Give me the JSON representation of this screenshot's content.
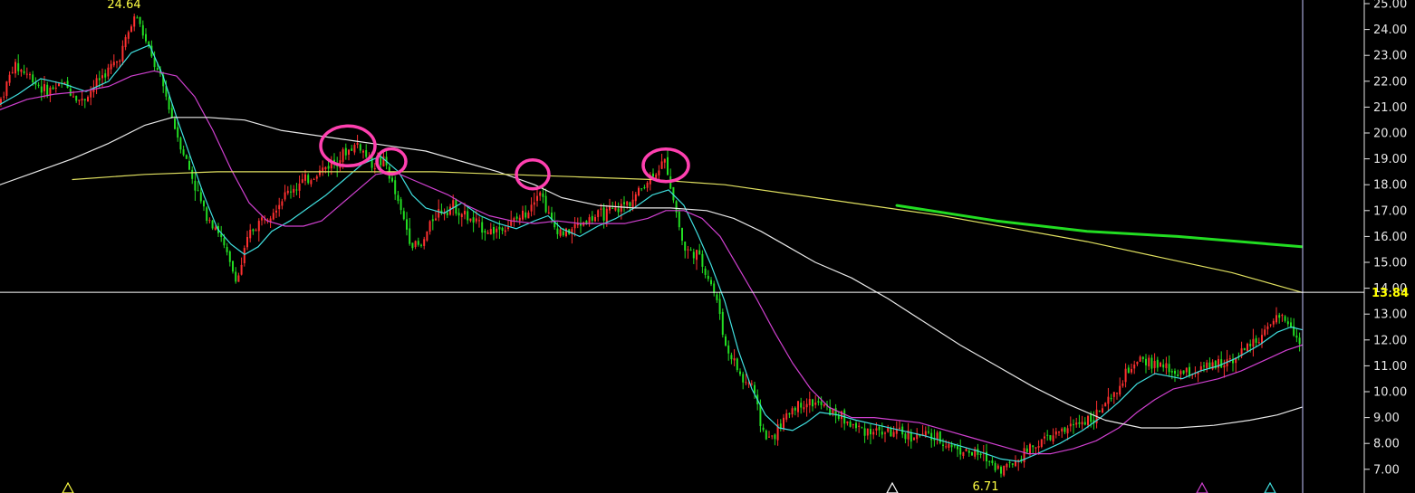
{
  "chart_data": {
    "type": "line",
    "title": "",
    "xlabel": "",
    "ylabel": "",
    "ylim": [
      6.6,
      25.15
    ],
    "y_ticks": [
      "25.00",
      "24.00",
      "23.00",
      "22.00",
      "21.00",
      "20.00",
      "19.00",
      "18.00",
      "17.00",
      "16.00",
      "15.00",
      "14.00",
      "13.00",
      "12.00",
      "11.00",
      "10.00",
      "9.00",
      "8.00",
      "7.00"
    ],
    "current_price": "13.84",
    "annotations": {
      "high_label": "24.64",
      "low_label": "6.71"
    },
    "candles_anchor_prices": [
      [
        0,
        21.2
      ],
      [
        15,
        22.6
      ],
      [
        30,
        22.3
      ],
      [
        50,
        21.6
      ],
      [
        70,
        21.9
      ],
      [
        90,
        21.2
      ],
      [
        110,
        22.1
      ],
      [
        130,
        22.8
      ],
      [
        150,
        24.6
      ],
      [
        165,
        23.1
      ],
      [
        180,
        21.8
      ],
      [
        195,
        20.0
      ],
      [
        210,
        18.5
      ],
      [
        225,
        17.0
      ],
      [
        240,
        16.3
      ],
      [
        255,
        14.8
      ],
      [
        262,
        14.3
      ],
      [
        275,
        16.1
      ],
      [
        290,
        16.7
      ],
      [
        305,
        17.2
      ],
      [
        320,
        17.8
      ],
      [
        340,
        18.2
      ],
      [
        360,
        18.7
      ],
      [
        380,
        19.2
      ],
      [
        395,
        19.6
      ],
      [
        410,
        18.8
      ],
      [
        425,
        18.9
      ],
      [
        440,
        17.2
      ],
      [
        455,
        15.7
      ],
      [
        465,
        15.6
      ],
      [
        480,
        16.9
      ],
      [
        500,
        17.2
      ],
      [
        520,
        16.6
      ],
      [
        540,
        16.2
      ],
      [
        560,
        16.4
      ],
      [
        580,
        16.9
      ],
      [
        595,
        17.9
      ],
      [
        610,
        16.4
      ],
      [
        625,
        16.1
      ],
      [
        640,
        16.5
      ],
      [
        660,
        16.8
      ],
      [
        680,
        17.0
      ],
      [
        700,
        17.5
      ],
      [
        720,
        18.4
      ],
      [
        735,
        18.9
      ],
      [
        745,
        17.2
      ],
      [
        755,
        15.5
      ],
      [
        770,
        15.3
      ],
      [
        785,
        14.2
      ],
      [
        795,
        13.0
      ],
      [
        800,
        11.8
      ],
      [
        810,
        11.2
      ],
      [
        820,
        10.4
      ],
      [
        830,
        10.3
      ],
      [
        840,
        8.7
      ],
      [
        848,
        8.1
      ],
      [
        860,
        8.6
      ],
      [
        875,
        9.4
      ],
      [
        890,
        9.6
      ],
      [
        905,
        9.5
      ],
      [
        925,
        9.1
      ],
      [
        945,
        8.6
      ],
      [
        965,
        8.5
      ],
      [
        985,
        8.4
      ],
      [
        1005,
        8.3
      ],
      [
        1025,
        8.3
      ],
      [
        1045,
        8.0
      ],
      [
        1065,
        7.7
      ],
      [
        1085,
        7.5
      ],
      [
        1105,
        7.0
      ],
      [
        1120,
        7.3
      ],
      [
        1135,
        7.8
      ],
      [
        1150,
        8.1
      ],
      [
        1170,
        8.4
      ],
      [
        1190,
        8.8
      ],
      [
        1210,
        9.1
      ],
      [
        1230,
        9.8
      ],
      [
        1245,
        10.8
      ],
      [
        1262,
        11.2
      ],
      [
        1280,
        11.0
      ],
      [
        1300,
        10.7
      ],
      [
        1320,
        10.8
      ],
      [
        1340,
        11.0
      ],
      [
        1360,
        11.3
      ],
      [
        1380,
        11.8
      ],
      [
        1400,
        12.4
      ],
      [
        1415,
        12.9
      ],
      [
        1425,
        12.6
      ],
      [
        1437,
        11.7
      ]
    ],
    "series": [
      {
        "color": "#40e0e0",
        "points": [
          [
            0,
            21.1
          ],
          [
            20,
            21.5
          ],
          [
            45,
            22.1
          ],
          [
            70,
            21.9
          ],
          [
            95,
            21.6
          ],
          [
            120,
            22.0
          ],
          [
            145,
            23.1
          ],
          [
            165,
            23.4
          ],
          [
            180,
            22.2
          ],
          [
            195,
            20.6
          ],
          [
            210,
            19.1
          ],
          [
            225,
            17.6
          ],
          [
            240,
            16.3
          ],
          [
            255,
            15.7
          ],
          [
            270,
            15.3
          ],
          [
            285,
            15.6
          ],
          [
            300,
            16.2
          ],
          [
            320,
            16.6
          ],
          [
            340,
            17.1
          ],
          [
            360,
            17.6
          ],
          [
            380,
            18.2
          ],
          [
            400,
            18.8
          ],
          [
            420,
            19.1
          ],
          [
            440,
            18.5
          ],
          [
            455,
            17.6
          ],
          [
            470,
            17.1
          ],
          [
            490,
            16.9
          ],
          [
            510,
            17.3
          ],
          [
            530,
            16.8
          ],
          [
            550,
            16.5
          ],
          [
            570,
            16.3
          ],
          [
            590,
            16.6
          ],
          [
            605,
            16.8
          ],
          [
            620,
            16.3
          ],
          [
            640,
            16.0
          ],
          [
            660,
            16.4
          ],
          [
            680,
            16.7
          ],
          [
            700,
            17.1
          ],
          [
            720,
            17.6
          ],
          [
            738,
            17.8
          ],
          [
            755,
            17.2
          ],
          [
            770,
            16.1
          ],
          [
            785,
            14.9
          ],
          [
            800,
            13.5
          ],
          [
            815,
            11.6
          ],
          [
            830,
            10.1
          ],
          [
            845,
            9.1
          ],
          [
            860,
            8.6
          ],
          [
            875,
            8.5
          ],
          [
            890,
            8.8
          ],
          [
            905,
            9.2
          ],
          [
            925,
            9.1
          ],
          [
            945,
            8.9
          ],
          [
            970,
            8.7
          ],
          [
            995,
            8.5
          ],
          [
            1020,
            8.3
          ],
          [
            1050,
            8.0
          ],
          [
            1080,
            7.7
          ],
          [
            1105,
            7.4
          ],
          [
            1125,
            7.3
          ],
          [
            1145,
            7.6
          ],
          [
            1170,
            8.0
          ],
          [
            1195,
            8.5
          ],
          [
            1215,
            9.0
          ],
          [
            1235,
            9.6
          ],
          [
            1255,
            10.3
          ],
          [
            1275,
            10.7
          ],
          [
            1290,
            10.6
          ],
          [
            1305,
            10.5
          ],
          [
            1325,
            10.8
          ],
          [
            1345,
            11.0
          ],
          [
            1365,
            11.3
          ],
          [
            1390,
            11.8
          ],
          [
            1410,
            12.3
          ],
          [
            1425,
            12.5
          ],
          [
            1437,
            12.4
          ]
        ]
      },
      {
        "color": "#d040d0",
        "points": [
          [
            0,
            20.9
          ],
          [
            30,
            21.3
          ],
          [
            60,
            21.5
          ],
          [
            90,
            21.6
          ],
          [
            120,
            21.8
          ],
          [
            145,
            22.2
          ],
          [
            170,
            22.4
          ],
          [
            195,
            22.2
          ],
          [
            215,
            21.4
          ],
          [
            235,
            20.1
          ],
          [
            255,
            18.6
          ],
          [
            275,
            17.3
          ],
          [
            295,
            16.6
          ],
          [
            315,
            16.4
          ],
          [
            335,
            16.4
          ],
          [
            355,
            16.6
          ],
          [
            375,
            17.2
          ],
          [
            395,
            17.8
          ],
          [
            415,
            18.4
          ],
          [
            435,
            18.5
          ],
          [
            455,
            18.2
          ],
          [
            475,
            17.9
          ],
          [
            495,
            17.6
          ],
          [
            515,
            17.2
          ],
          [
            540,
            16.8
          ],
          [
            565,
            16.6
          ],
          [
            590,
            16.5
          ],
          [
            615,
            16.6
          ],
          [
            640,
            16.5
          ],
          [
            665,
            16.5
          ],
          [
            690,
            16.5
          ],
          [
            715,
            16.7
          ],
          [
            735,
            17.0
          ],
          [
            755,
            17.0
          ],
          [
            775,
            16.7
          ],
          [
            795,
            16.0
          ],
          [
            815,
            14.8
          ],
          [
            835,
            13.6
          ],
          [
            855,
            12.3
          ],
          [
            875,
            11.1
          ],
          [
            895,
            10.1
          ],
          [
            915,
            9.4
          ],
          [
            940,
            9.0
          ],
          [
            965,
            9.0
          ],
          [
            990,
            8.9
          ],
          [
            1015,
            8.8
          ],
          [
            1045,
            8.5
          ],
          [
            1075,
            8.2
          ],
          [
            1105,
            7.9
          ],
          [
            1135,
            7.6
          ],
          [
            1160,
            7.6
          ],
          [
            1185,
            7.8
          ],
          [
            1210,
            8.1
          ],
          [
            1235,
            8.6
          ],
          [
            1255,
            9.2
          ],
          [
            1275,
            9.7
          ],
          [
            1295,
            10.1
          ],
          [
            1320,
            10.3
          ],
          [
            1345,
            10.5
          ],
          [
            1370,
            10.8
          ],
          [
            1395,
            11.2
          ],
          [
            1420,
            11.6
          ],
          [
            1437,
            11.8
          ]
        ]
      },
      {
        "color": "#e8e8e8",
        "points": [
          [
            0,
            18.0
          ],
          [
            40,
            18.5
          ],
          [
            80,
            19.0
          ],
          [
            120,
            19.6
          ],
          [
            160,
            20.3
          ],
          [
            190,
            20.6
          ],
          [
            230,
            20.6
          ],
          [
            270,
            20.5
          ],
          [
            310,
            20.1
          ],
          [
            350,
            19.9
          ],
          [
            390,
            19.7
          ],
          [
            430,
            19.5
          ],
          [
            470,
            19.3
          ],
          [
            510,
            18.9
          ],
          [
            550,
            18.5
          ],
          [
            590,
            18.0
          ],
          [
            620,
            17.5
          ],
          [
            660,
            17.2
          ],
          [
            700,
            17.1
          ],
          [
            740,
            17.1
          ],
          [
            780,
            17.0
          ],
          [
            810,
            16.7
          ],
          [
            840,
            16.2
          ],
          [
            870,
            15.6
          ],
          [
            900,
            15.0
          ],
          [
            940,
            14.4
          ],
          [
            980,
            13.6
          ],
          [
            1020,
            12.7
          ],
          [
            1060,
            11.8
          ],
          [
            1100,
            11.0
          ],
          [
            1140,
            10.2
          ],
          [
            1180,
            9.5
          ],
          [
            1220,
            8.9
          ],
          [
            1260,
            8.6
          ],
          [
            1300,
            8.6
          ],
          [
            1340,
            8.7
          ],
          [
            1380,
            8.9
          ],
          [
            1410,
            9.1
          ],
          [
            1437,
            9.4
          ]
        ]
      },
      {
        "color": "#e0e060",
        "points": [
          [
            80,
            18.2
          ],
          [
            160,
            18.4
          ],
          [
            240,
            18.5
          ],
          [
            320,
            18.5
          ],
          [
            400,
            18.5
          ],
          [
            480,
            18.5
          ],
          [
            560,
            18.4
          ],
          [
            640,
            18.3
          ],
          [
            720,
            18.2
          ],
          [
            800,
            18.0
          ],
          [
            880,
            17.6
          ],
          [
            960,
            17.2
          ],
          [
            1040,
            16.8
          ],
          [
            1120,
            16.3
          ],
          [
            1200,
            15.8
          ],
          [
            1280,
            15.2
          ],
          [
            1360,
            14.6
          ],
          [
            1437,
            13.84
          ]
        ]
      },
      {
        "color": "#22dd22",
        "points": [
          [
            990,
            17.2
          ],
          [
            1100,
            16.6
          ],
          [
            1200,
            16.2
          ],
          [
            1300,
            16.0
          ],
          [
            1437,
            15.6
          ]
        ]
      }
    ],
    "highlight_circles": [
      {
        "x": 384,
        "y": 19.5,
        "rx": 30,
        "ry": 22
      },
      {
        "x": 432,
        "y": 18.9,
        "rx": 16,
        "ry": 14
      },
      {
        "x": 588,
        "y": 18.4,
        "rx": 18,
        "ry": 16
      },
      {
        "x": 735,
        "y": 18.75,
        "rx": 25,
        "ry": 18
      }
    ],
    "markers": [
      {
        "x": 75,
        "color": "#ffff44"
      },
      {
        "x": 985,
        "color": "#ffffff"
      },
      {
        "x": 1327,
        "color": "#d040d0"
      },
      {
        "x": 1402,
        "color": "#40e0e0"
      }
    ],
    "colors": {
      "background": "#000000",
      "axis": "#e6e6e6",
      "price_line": "#ffffff",
      "highlight": "#ff40b0",
      "rising_candle": "#ff3030",
      "falling_candle": "#22dd22"
    }
  }
}
